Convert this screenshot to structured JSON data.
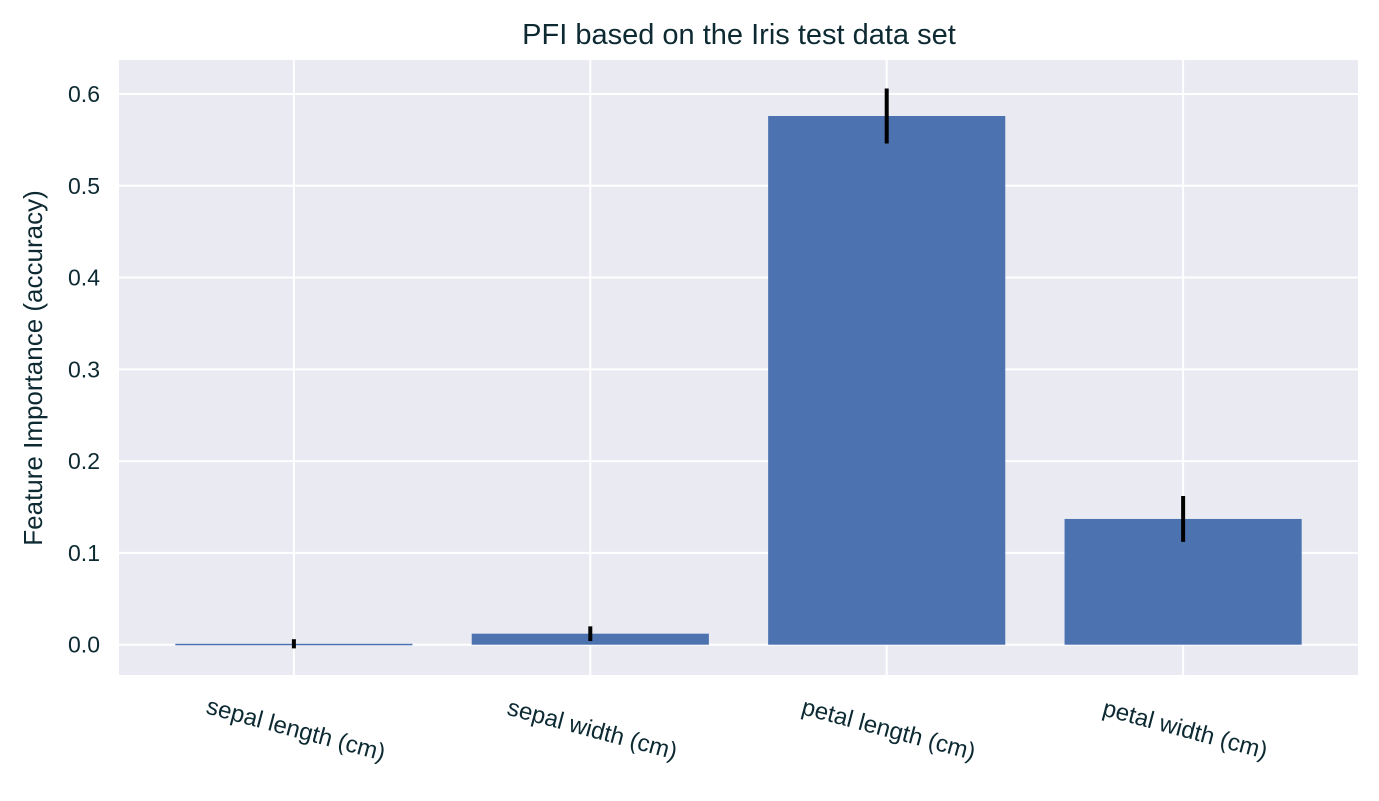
{
  "chart_data": {
    "type": "bar",
    "title": "PFI based on the Iris test data set",
    "xlabel": "",
    "ylabel": "Feature Importance (accuracy)",
    "categories": [
      "sepal length (cm)",
      "sepal width (cm)",
      "petal length (cm)",
      "petal width (cm)"
    ],
    "values": [
      0.001,
      0.012,
      0.576,
      0.137
    ],
    "errors": [
      0.005,
      0.008,
      0.03,
      0.025
    ],
    "ylim": [
      -0.033,
      0.637
    ],
    "yticks": [
      0.0,
      0.1,
      0.2,
      0.3,
      0.4,
      0.5,
      0.6
    ],
    "ytick_labels": [
      "0.0",
      "0.1",
      "0.2",
      "0.3",
      "0.4",
      "0.5",
      "0.6"
    ],
    "grid": true,
    "colors": {
      "bar": "#4c72b0",
      "background": "#eaeaf2",
      "grid": "#ffffff",
      "error": "#000000"
    }
  }
}
